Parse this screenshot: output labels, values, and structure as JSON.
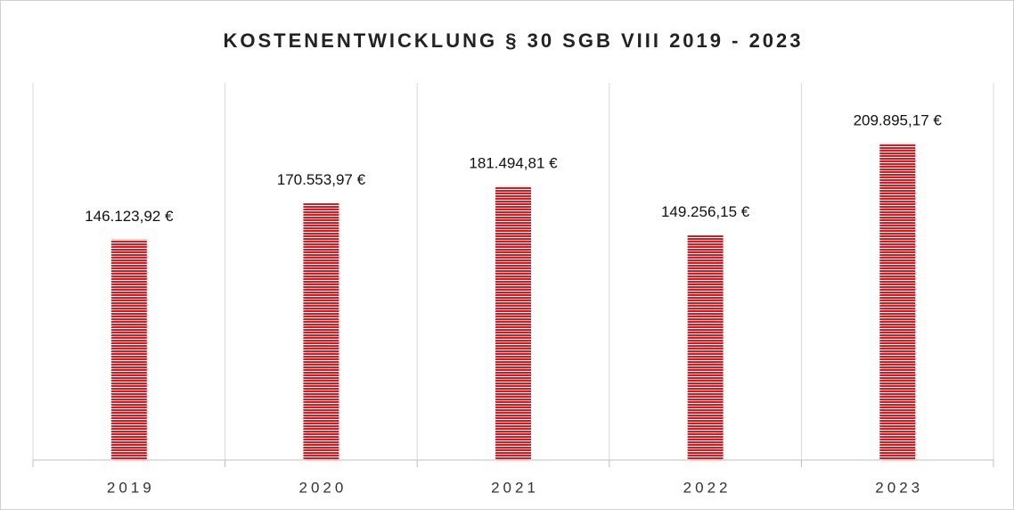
{
  "chart_data": {
    "type": "bar",
    "title": "KOSTENENTWICKLUNG § 30 SGB VIII 2019 - 2023",
    "categories": [
      "2019",
      "2020",
      "2021",
      "2022",
      "2023"
    ],
    "values": [
      146123.92,
      170553.97,
      181494.81,
      149256.15,
      209895.17
    ],
    "value_labels": [
      "146.123,92 €",
      "170.553,97 €",
      "181.494,81 €",
      "149.256,15 €",
      "209.895,17 €"
    ],
    "color": "#e2161d",
    "ylim": [
      0,
      250000
    ]
  }
}
